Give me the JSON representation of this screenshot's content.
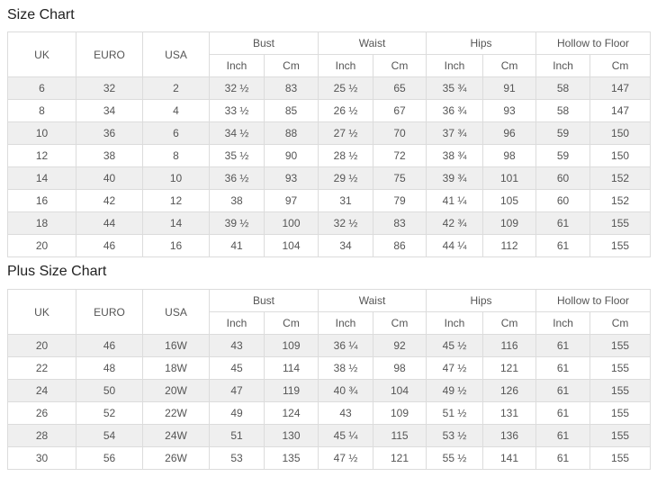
{
  "page": {
    "size_chart_title": "Size Chart",
    "plus_size_chart_title": "Plus Size Chart"
  },
  "table_headers": {
    "uk": "UK",
    "euro": "EURO",
    "usa": "USA",
    "bust": "Bust",
    "waist": "Waist",
    "hips": "Hips",
    "hollow_to_floor": "Hollow to Floor",
    "inch": "Inch",
    "cm": "Cm"
  },
  "size_chart": {
    "rows": [
      [
        "6",
        "32",
        "2",
        "32 ½",
        "83",
        "25 ½",
        "65",
        "35 ¾",
        "91",
        "58",
        "147"
      ],
      [
        "8",
        "34",
        "4",
        "33 ½",
        "85",
        "26 ½",
        "67",
        "36 ¾",
        "93",
        "58",
        "147"
      ],
      [
        "10",
        "36",
        "6",
        "34 ½",
        "88",
        "27 ½",
        "70",
        "37 ¾",
        "96",
        "59",
        "150"
      ],
      [
        "12",
        "38",
        "8",
        "35 ½",
        "90",
        "28 ½",
        "72",
        "38 ¾",
        "98",
        "59",
        "150"
      ],
      [
        "14",
        "40",
        "10",
        "36 ½",
        "93",
        "29 ½",
        "75",
        "39 ¾",
        "101",
        "60",
        "152"
      ],
      [
        "16",
        "42",
        "12",
        "38",
        "97",
        "31",
        "79",
        "41 ¼",
        "105",
        "60",
        "152"
      ],
      [
        "18",
        "44",
        "14",
        "39 ½",
        "100",
        "32 ½",
        "83",
        "42 ¾",
        "109",
        "61",
        "155"
      ],
      [
        "20",
        "46",
        "16",
        "41",
        "104",
        "34",
        "86",
        "44 ¼",
        "112",
        "61",
        "155"
      ]
    ]
  },
  "plus_size_chart": {
    "rows": [
      [
        "20",
        "46",
        "16W",
        "43",
        "109",
        "36 ¼",
        "92",
        "45 ½",
        "116",
        "61",
        "155"
      ],
      [
        "22",
        "48",
        "18W",
        "45",
        "114",
        "38 ½",
        "98",
        "47 ½",
        "121",
        "61",
        "155"
      ],
      [
        "24",
        "50",
        "20W",
        "47",
        "119",
        "40 ¾",
        "104",
        "49 ½",
        "126",
        "61",
        "155"
      ],
      [
        "26",
        "52",
        "22W",
        "49",
        "124",
        "43",
        "109",
        "51 ½",
        "131",
        "61",
        "155"
      ],
      [
        "28",
        "54",
        "24W",
        "51",
        "130",
        "45 ¼",
        "115",
        "53 ½",
        "136",
        "61",
        "155"
      ],
      [
        "30",
        "56",
        "26W",
        "53",
        "135",
        "47 ½",
        "121",
        "55 ½",
        "141",
        "61",
        "155"
      ]
    ]
  },
  "colors": {
    "stripe_row_bg": "#efefef",
    "border": "#dcdcdc",
    "cell_text": "#555555",
    "title_text": "#222222"
  }
}
